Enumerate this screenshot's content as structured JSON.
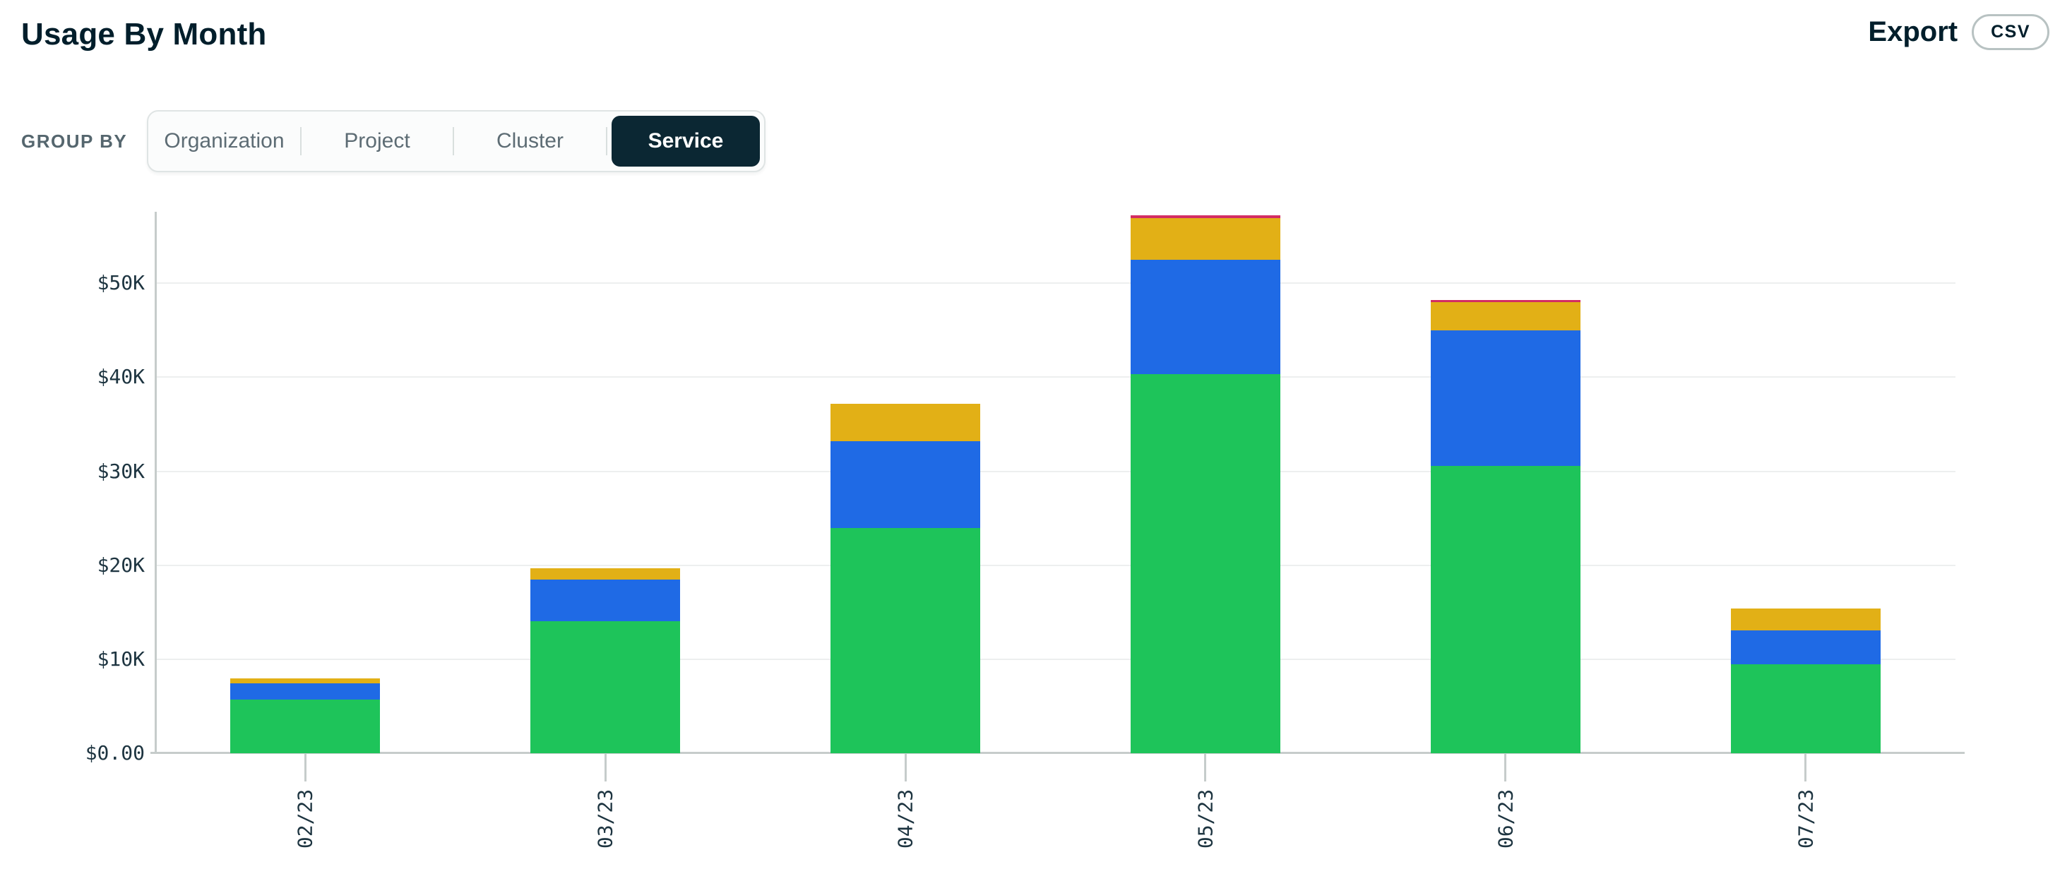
{
  "header": {
    "title": "Usage By Month",
    "export_label": "Export",
    "export_button_label": "CSV"
  },
  "controls": {
    "group_by_label": "GROUP BY",
    "options": [
      {
        "label": "Organization",
        "selected": false
      },
      {
        "label": "Project",
        "selected": false
      },
      {
        "label": "Cluster",
        "selected": false
      },
      {
        "label": "Service",
        "selected": true
      }
    ]
  },
  "chart_data": {
    "type": "bar",
    "stacked": true,
    "title": "",
    "xlabel": "",
    "ylabel": "",
    "legend": "none",
    "grid": "horizontal",
    "categories": [
      "02/23",
      "03/23",
      "04/23",
      "05/23",
      "06/23",
      "07/23"
    ],
    "series": [
      {
        "name": "green-service",
        "color": "#1EC45A",
        "values": [
          5.7,
          14.1,
          24.0,
          40.3,
          30.6,
          9.5
        ]
      },
      {
        "name": "blue-service",
        "color": "#1F6AE5",
        "values": [
          1.7,
          4.4,
          9.2,
          12.2,
          14.4,
          3.6
        ]
      },
      {
        "name": "yellow-service",
        "color": "#E2B016",
        "values": [
          0.55,
          1.2,
          4.0,
          4.4,
          3.0,
          2.3
        ]
      },
      {
        "name": "red-service",
        "color": "#D32D63",
        "values": [
          0,
          0,
          0,
          0.3,
          0.25,
          0
        ]
      }
    ],
    "totals_k": [
      7.95,
      19.7,
      37.2,
      57.2,
      48.25,
      15.4
    ],
    "y_ticks": [
      "$0.00",
      "$10K",
      "$20K",
      "$30K",
      "$40K",
      "$50K"
    ],
    "y_tick_values": [
      0,
      10,
      20,
      30,
      40,
      50
    ],
    "ylim": [
      0,
      57.6
    ],
    "y_unit": "USD thousands"
  },
  "colors": {
    "text_dark": "#001E2B",
    "text_gray": "#5D6C74",
    "selected_segment_bg": "#0B2733",
    "axis": "#C6CCCB",
    "gridline": "#EDEFEF"
  }
}
